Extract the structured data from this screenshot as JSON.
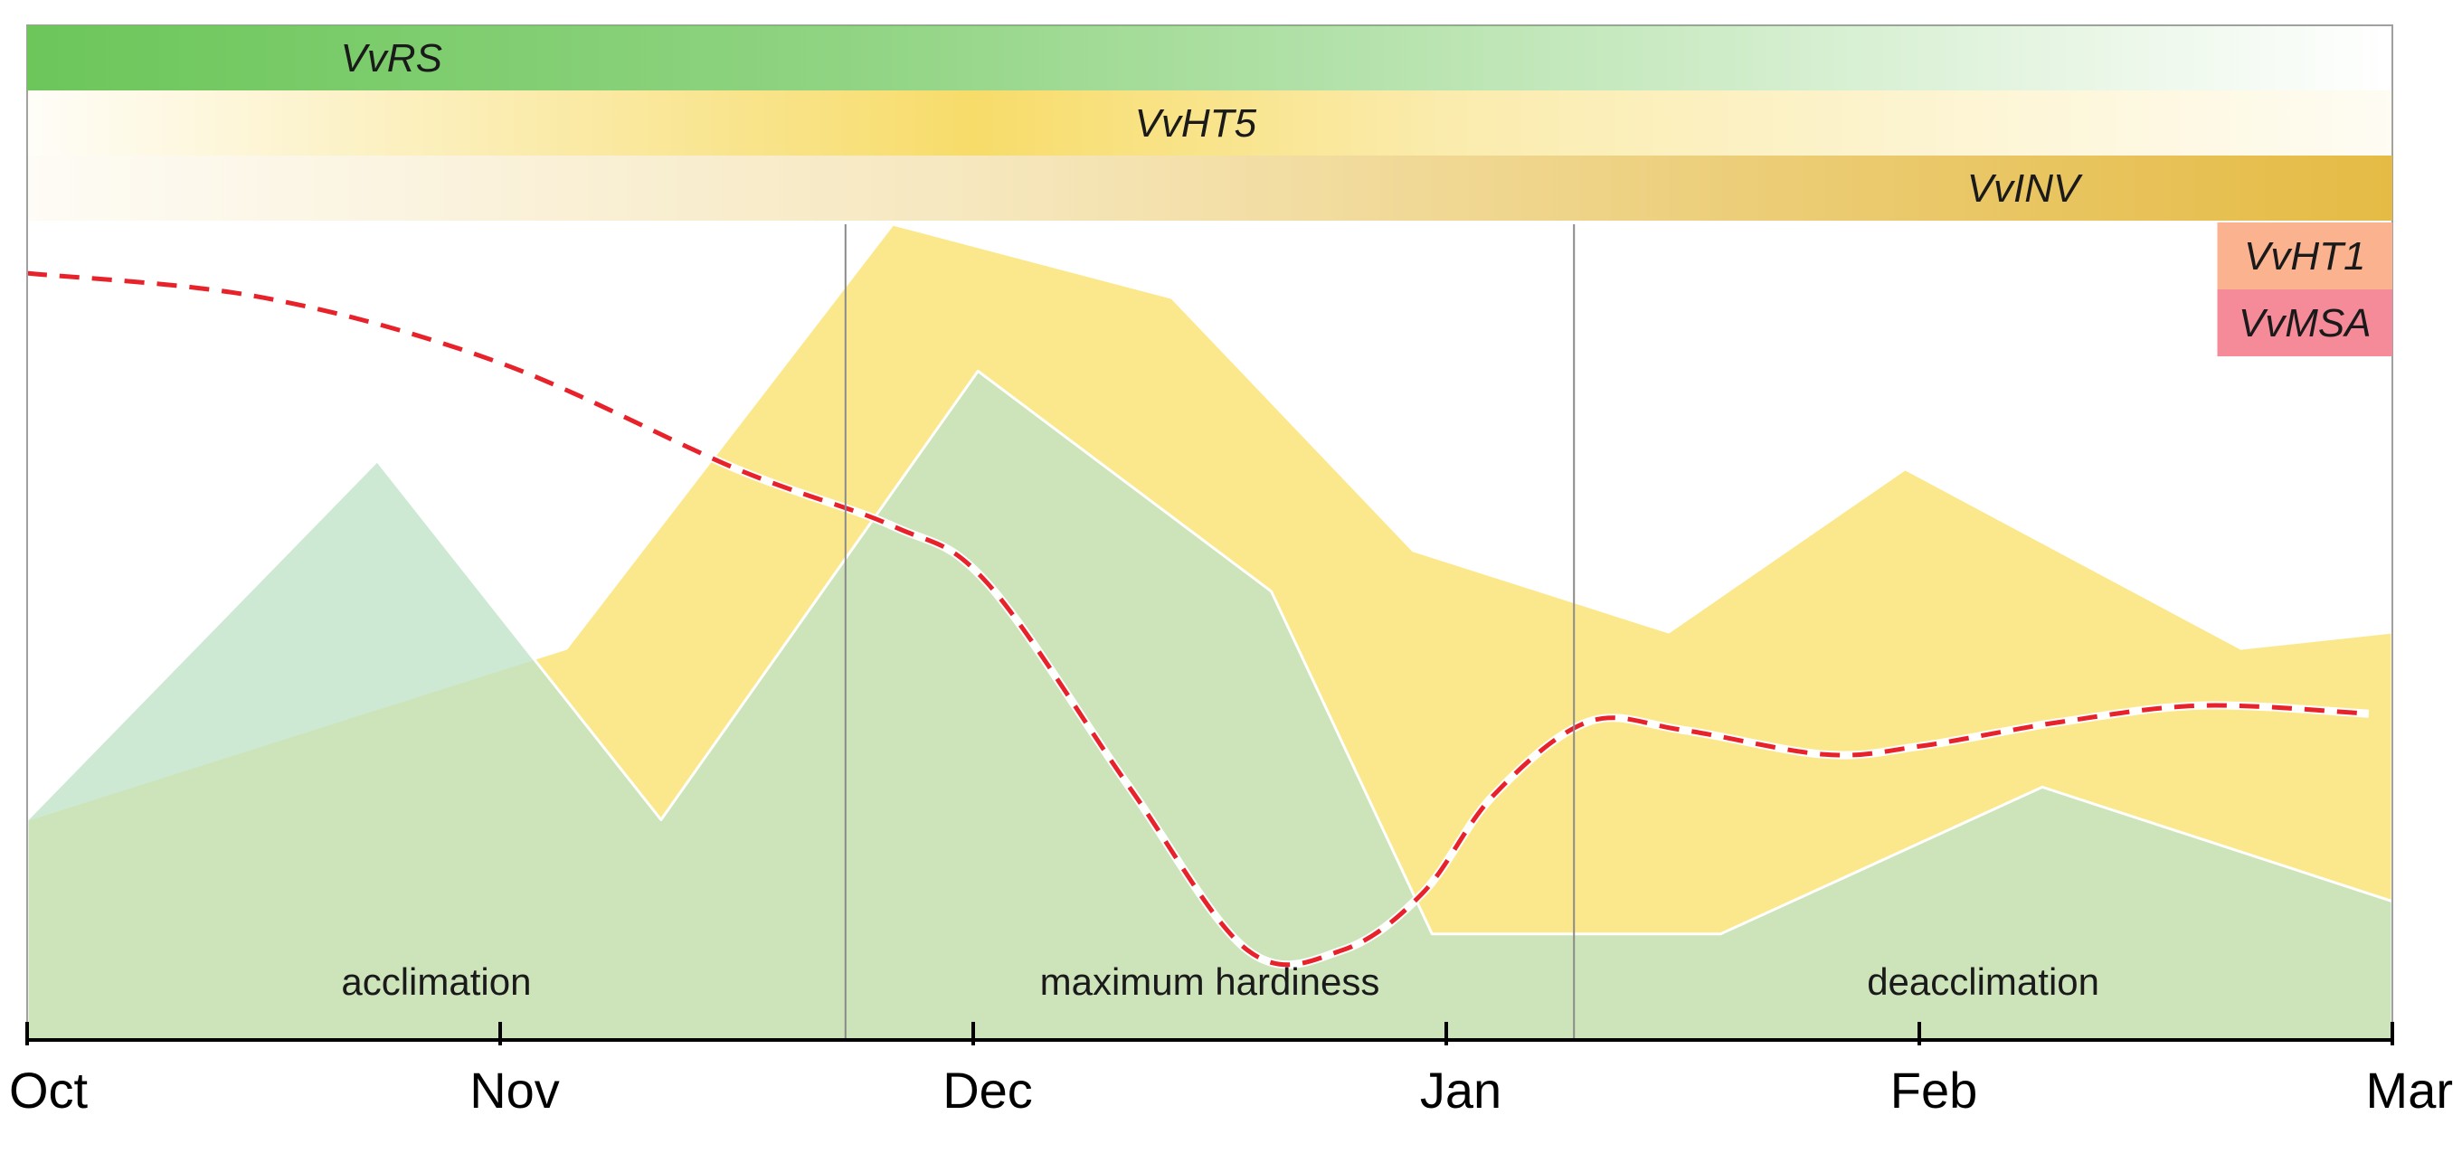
{
  "chart_data": {
    "type": "area",
    "title": "",
    "xlabel": "",
    "ylabel": "",
    "x_ticks": [
      "Oct",
      "Nov",
      "Dec",
      "Jan",
      "Feb",
      "Mar"
    ],
    "x_range": [
      0,
      5
    ],
    "y_range": [
      0,
      100
    ],
    "grid": false,
    "phases": [
      {
        "label": "acclimation",
        "start": 0,
        "end": 1.73
      },
      {
        "label": "maximum hardiness",
        "start": 1.73,
        "end": 3.27
      },
      {
        "label": "deacclimation",
        "start": 3.27,
        "end": 5
      }
    ],
    "expression_bars": [
      {
        "label": "VvRS",
        "start": 0,
        "end": 5,
        "peak": 0,
        "color": "#6cc65a",
        "shape": "fade-out"
      },
      {
        "label": "VvHT5",
        "start": 0,
        "end": 5,
        "peak": 2.0,
        "color": "#f7dc6a",
        "shape": "peak"
      },
      {
        "label": "VvINV",
        "start": 0,
        "end": 5,
        "peak": 5,
        "color": "#e5bb45",
        "shape": "fade-in"
      },
      {
        "label": "VvHT1",
        "start": 4.63,
        "end": 5,
        "color": "#fbb38f",
        "shape": "solid"
      },
      {
        "label": "VvMSA",
        "start": 4.63,
        "end": 5,
        "color": "#f58a98",
        "shape": "solid"
      }
    ],
    "series": [
      {
        "color": "#fce682",
        "style": "area",
        "x": [
          0,
          1.14,
          1.83,
          2.42,
          2.93,
          3.47,
          3.97,
          4.68,
          5.0
        ],
        "values": [
          27,
          48,
          100,
          91,
          60,
          50,
          70,
          48,
          50
        ]
      },
      {
        "color": "#bfe3c8",
        "style": "area",
        "x": [
          0,
          0.74,
          1.34,
          2.01,
          2.63,
          2.97,
          3.58,
          4.26,
          5.0
        ],
        "values": [
          27,
          71,
          27,
          82,
          55,
          13,
          13,
          31,
          17
        ]
      },
      {
        "color": "#e8222a",
        "style": "dashed-line",
        "x": [
          0,
          0.5,
          1.0,
          1.5,
          1.83,
          2.03,
          2.33,
          2.58,
          2.78,
          2.95,
          3.1,
          3.3,
          3.5,
          3.8,
          4.0,
          4.3,
          4.6,
          4.95
        ],
        "values": [
          94,
          91,
          83,
          70,
          63,
          56,
          31,
          11,
          11,
          18,
          30,
          39,
          38,
          35,
          36,
          39,
          41,
          40
        ]
      }
    ]
  }
}
